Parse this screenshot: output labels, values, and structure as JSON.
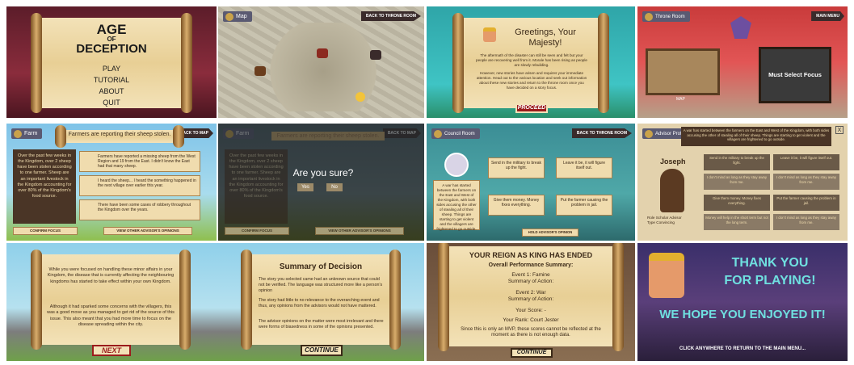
{
  "colors": {
    "accent_red": "#9b1c1c",
    "parchment": "#f0dcae",
    "teal": "#3fc4c4",
    "wood": "#7b5224"
  },
  "p1": {
    "title_line1": "AGE",
    "title_line2": "OF",
    "title_line3": "DECEPTION",
    "menu": [
      "PLAY",
      "TUTORIAL",
      "ABOUT",
      "QUIT"
    ]
  },
  "p2": {
    "tag": "Map",
    "back": "BACK TO THRONE ROOM"
  },
  "p3": {
    "title": "Greetings, Your Majesty!",
    "para1": "The aftermath of the disaster can still be seen and felt but your people are recovering well from it. Morale has been rising as people are slowly rebuilding.",
    "para2": "However, new stories have arisen and requires your immediate attention. Head out to the various location and seek out information about these new stories and return to the throne room once you have decided on a story focus.",
    "button": "PROCEED"
  },
  "p4": {
    "tag": "Throne Room",
    "top": "MAIN MENU",
    "map_label": "MAP",
    "focus": "Must Select Focus"
  },
  "p5": {
    "tag": "Farm",
    "back": "BACK TO MAP",
    "banner": "Farmers are reporting their sheep stolen.",
    "left_text": "Over the past few weeks in the Kingdom, over 2 sheep have been stolen according to one farmer. Sheep are an important livestock in the Kingdom accounting for over 80% of the Kingdom's food source.",
    "c1": "Farmers have reported a missing sheep from the West Region and 19 from the East. I didn't know the East had that many sheep.",
    "c2": "I heard the sheep... I heard the something happened in the next village over earlier this year.",
    "c3": "There have been some cases of robbery throughout the Kingdom over the years.",
    "btn_left": "CONFIRM FOCUS",
    "btn_right": "VIEW OTHER ADVISOR'S OPINIONS"
  },
  "p6": {
    "tag": "Farm",
    "back": "BACK TO MAP",
    "banner": "Farmers are reporting their sheep stolen.",
    "left_text": "Over the past few weeks in the Kingdom, over 2 sheep have been stolen according to one farmer. Sheep are an important livestock in the Kingdom accounting for over 80% of the Kingdom's food source.",
    "question": "Are you sure?",
    "yes": "Yes",
    "no": "No",
    "btn_left": "CONFIRM FOCUS",
    "btn_right": "VIEW OTHER ADVISOR'S OPINIONS"
  },
  "p7": {
    "tag": "Council Room",
    "back": "BACK TO THRONE ROOM",
    "left_text": "A war has started between the farmers on the East and West of the Kingdom, with both sides accusing the other of stealing all of their sheep. Things are starting to get violent and the villagers are frightened to go outside.",
    "o1": "Send in the military to break up the fight.",
    "o2": "Leave it be, it will figure itself out.",
    "o3": "Give them money. Money fixes everything.",
    "o4": "Put the farmer causing the problem in jail.",
    "btn": "HOLD ADVISOR'S OPINION"
  },
  "p8": {
    "tag": "Advisor Profile",
    "close": "X",
    "header_text": "A war has started between the farmers on the East and West of the Kingdom, with both sides accusing the other of stealing all of their sheep. Things are starting to get violent and the villagers are frightened to go outside.",
    "name": "Joseph",
    "role_label": "Role",
    "role": "Scholar Advisor",
    "type_label": "Type",
    "type": "Convincing",
    "cells": [
      "Send in the military to break up the fight.",
      "Leave it be, it will figure itself out.",
      "I don't mind as long as they stay away from me.",
      "I don't mind as long as they stay away from me.",
      "Give them money. Money fixes everything.",
      "Put the farmer causing the problem in jail.",
      "Money will help in the short term but not the long term.",
      "I don't mind as long as they stay away from me."
    ]
  },
  "p9": {
    "para1": "While you were focused on handling these minor affairs in your Kingdom, the disease that is currently affecting the neighbouring kingdoms has started to take effect within your own Kingdom.",
    "para2": "Although it had sparked some concerns with the villagers, this was a good move as you managed to get rid of the source of this issue. This also meant that you had more time to focus on the disease spreading within the city.",
    "button": "NEXT",
    "summary_title": "Summary of Decision",
    "s1": "The story you selected came had an unknown source that could not be verified. The language was structured more like a person's opinion",
    "s2": "The story had little to no relevance to the overarching event and thus, any opinions from the advisors would not have mattered.",
    "s3": "The advisor opinions on the matter were most irrelevant and there were forms of biasedness in some of the opinions presented.",
    "summary_button": "CONTINUE"
  },
  "p10": {
    "title": "YOUR REIGN AS KING HAS ENDED",
    "overall": "Overall Performance Summary:",
    "e1": "Event 1: Famine",
    "e1s": "Summary of Action:",
    "e2": "Event 2: War",
    "e2s": "Summary of Action:",
    "score": "Your Score: -",
    "rank": "Your Rank: Court Jester",
    "note": "Since this is only an MVP, these scores cannot be reflected at the moment as there is not enough data.",
    "button": "CONTINUE"
  },
  "p11": {
    "line1": "THANK YOU",
    "line2": "FOR PLAYING!",
    "line3": "WE HOPE YOU ENJOYED IT!",
    "footer": "CLICK ANYWHERE TO RETURN TO THE MAIN MENU..."
  }
}
